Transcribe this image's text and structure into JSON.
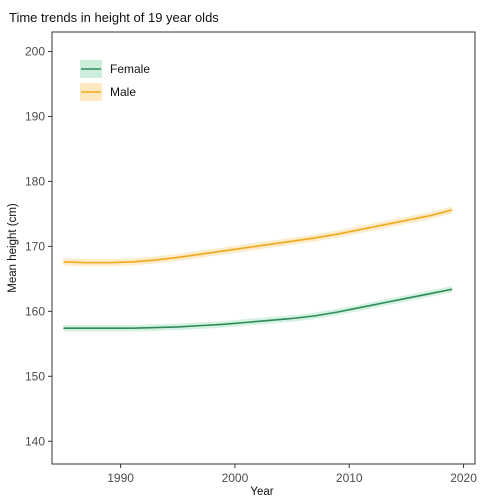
{
  "chart_data": {
    "type": "line",
    "title": "Time trends in height of 19 year olds",
    "xlabel": "Year",
    "ylabel": "Mean height (cm)",
    "xlim": [
      1984,
      2021
    ],
    "ylim": [
      136.5,
      203
    ],
    "xticks": [
      1990,
      2000,
      2010,
      2020
    ],
    "yticks": [
      140,
      150,
      160,
      170,
      180,
      190,
      200
    ],
    "grid": false,
    "legend_position": "top-left",
    "x": [
      1985,
      1987,
      1989,
      1991,
      1993,
      1995,
      1997,
      1999,
      2001,
      2003,
      2005,
      2007,
      2009,
      2011,
      2013,
      2015,
      2017,
      2019
    ],
    "series": [
      {
        "name": "Female",
        "color": "#2e8b57",
        "band_color": "#cdeedd",
        "values": [
          157.4,
          157.4,
          157.4,
          157.4,
          157.5,
          157.6,
          157.8,
          158.0,
          158.3,
          158.6,
          158.9,
          159.3,
          159.9,
          160.6,
          161.3,
          162.0,
          162.7,
          163.4
        ],
        "band": 0.5
      },
      {
        "name": "Male",
        "color": "#f2a81d",
        "band_color": "#fde9c0",
        "values": [
          167.6,
          167.5,
          167.5,
          167.6,
          167.9,
          168.3,
          168.8,
          169.3,
          169.8,
          170.3,
          170.8,
          171.3,
          171.9,
          172.6,
          173.3,
          174.0,
          174.7,
          175.6
        ],
        "band": 0.55
      }
    ]
  }
}
